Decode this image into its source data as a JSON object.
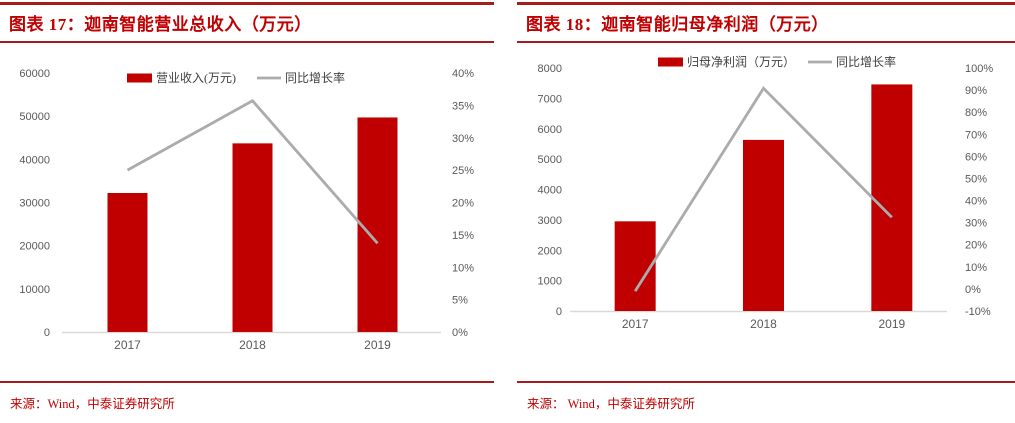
{
  "colors": {
    "bar": "#C00000",
    "line": "#ABABAB",
    "axis_line": "#D9D9D9",
    "axis_text": "#595959",
    "title_text": "#C00000",
    "rule": "#A61C1C",
    "source_text": "#C00000"
  },
  "panels": [
    {
      "title": "图表 17：迦南智能营业总收入（万元）",
      "source": "来源：Wind，中泰证券研究所"
    },
    {
      "title": "图表 18：迦南智能归母净利润（万元）",
      "source": "来源： Wind，中泰证券研究所"
    }
  ],
  "chart_data": [
    {
      "type": "bar",
      "subtype": "bar+line-combo",
      "title": "图表 17：迦南智能营业总收入（万元）",
      "categories": [
        "2017",
        "2018",
        "2019"
      ],
      "series": [
        {
          "name": "营业收入(万元)",
          "kind": "bar",
          "axis": "left",
          "values": [
            32200,
            43700,
            49700
          ]
        },
        {
          "name": "同比增长率",
          "kind": "line",
          "axis": "right",
          "values": [
            25.0,
            35.7,
            13.7
          ],
          "unit": "%"
        }
      ],
      "left_axis": {
        "min": 0,
        "max": 60000,
        "step": 10000,
        "tick_labels": [
          "0",
          "10000",
          "20000",
          "30000",
          "40000",
          "50000",
          "60000"
        ]
      },
      "right_axis": {
        "min": 0,
        "max": 40,
        "step": 5,
        "format": "percent",
        "tick_labels": [
          "0%",
          "5%",
          "10%",
          "15%",
          "20%",
          "25%",
          "30%",
          "35%",
          "40%"
        ]
      },
      "legend_position": "top",
      "gridlines": false
    },
    {
      "type": "bar",
      "subtype": "bar+line-combo",
      "title": "图表 18：迦南智能归母净利润（万元）",
      "categories": [
        "2017",
        "2018",
        "2019"
      ],
      "series": [
        {
          "name": "归母净利润（万元）",
          "kind": "bar",
          "axis": "left",
          "values": [
            2952,
            5633,
            7459
          ]
        },
        {
          "name": "同比增长率",
          "kind": "line",
          "axis": "right",
          "values": [
            -1.0,
            90.8,
            32.4
          ],
          "unit": "%"
        }
      ],
      "left_axis": {
        "min": 0,
        "max": 8000,
        "step": 1000,
        "tick_labels": [
          "0",
          "1000",
          "2000",
          "3000",
          "4000",
          "5000",
          "6000",
          "7000",
          "8000"
        ]
      },
      "right_axis": {
        "min": -10,
        "max": 100,
        "step": 10,
        "format": "percent",
        "tick_labels": [
          "-10%",
          "0%",
          "10%",
          "20%",
          "30%",
          "40%",
          "50%",
          "60%",
          "70%",
          "80%",
          "90%",
          "100%"
        ]
      },
      "legend_position": "top",
      "gridlines": false
    }
  ]
}
